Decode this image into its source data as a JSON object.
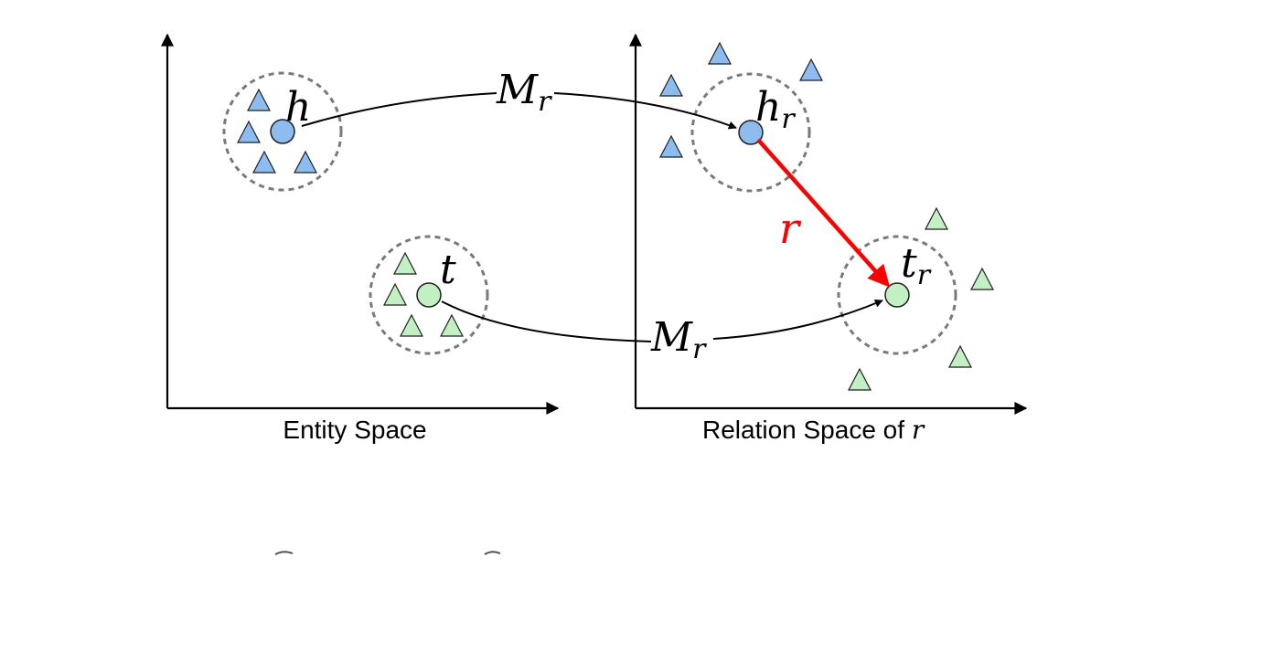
{
  "figure": {
    "entity_space_caption": "Entity Space",
    "relation_space_caption_prefix": "Relation Space of ",
    "relation_space_caption_var": "r",
    "labels": {
      "head": "h",
      "tail": "t",
      "head_projected_base": "h",
      "head_projected_sub": "r",
      "tail_projected_base": "t",
      "tail_projected_sub": "r",
      "mapping_base": "M",
      "mapping_sub": "r",
      "relation_vector": "r"
    },
    "colors": {
      "head_fill": "#8cbcf0",
      "tail_fill": "#c2f0c2",
      "relation_arrow": "#ff0000",
      "cluster_outline": "#7a7a7a"
    }
  }
}
